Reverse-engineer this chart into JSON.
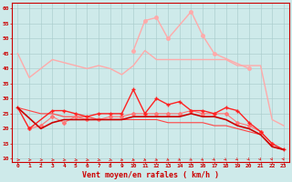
{
  "x": [
    0,
    1,
    2,
    3,
    4,
    5,
    6,
    7,
    8,
    9,
    10,
    11,
    12,
    13,
    14,
    15,
    16,
    17,
    18,
    19,
    20,
    21,
    22,
    23
  ],
  "line_gust_max": [
    45,
    37,
    null,
    43,
    42,
    41,
    40,
    41,
    40,
    38,
    41,
    46,
    43,
    43,
    43,
    43,
    43,
    43,
    43,
    41,
    41,
    41,
    23,
    21
  ],
  "line_gust_spike": [
    null,
    null,
    null,
    null,
    null,
    null,
    null,
    null,
    null,
    null,
    46,
    56,
    57,
    50,
    null,
    59,
    51,
    45,
    null,
    null,
    40,
    null,
    null,
    null
  ],
  "line_med_gust": [
    27,
    20,
    null,
    26,
    26,
    25,
    24,
    25,
    25,
    25,
    33,
    25,
    30,
    28,
    29,
    26,
    26,
    25,
    27,
    26,
    22,
    19,
    15,
    13
  ],
  "line_avg_high": [
    null,
    20,
    21,
    24,
    22,
    24,
    23,
    23,
    24,
    24,
    25,
    25,
    25,
    25,
    25,
    26,
    25,
    25,
    25,
    22,
    21,
    19,
    15,
    null
  ],
  "line_avg_low": [
    27,
    null,
    20,
    22,
    23,
    23,
    23,
    23,
    23,
    23,
    24,
    24,
    24,
    24,
    24,
    25,
    24,
    24,
    23,
    21,
    20,
    18,
    14,
    13
  ],
  "line_trend": [
    27,
    26,
    25,
    25,
    24,
    24,
    24,
    23,
    23,
    23,
    23,
    23,
    23,
    22,
    22,
    22,
    22,
    21,
    21,
    20,
    19,
    18,
    14,
    13
  ],
  "bg_color": "#ceeaea",
  "grid_color": "#aacccc",
  "c_light_pink": "#ffaaaa",
  "c_med_pink": "#ff7777",
  "c_red": "#ff2222",
  "c_dark_red": "#cc0000",
  "c_trend": "#ff4444",
  "xlabel": "Vent moyen/en rafales ( km/h )",
  "ylim": [
    9,
    62
  ],
  "yticks": [
    10,
    15,
    20,
    25,
    30,
    35,
    40,
    45,
    50,
    55,
    60
  ]
}
